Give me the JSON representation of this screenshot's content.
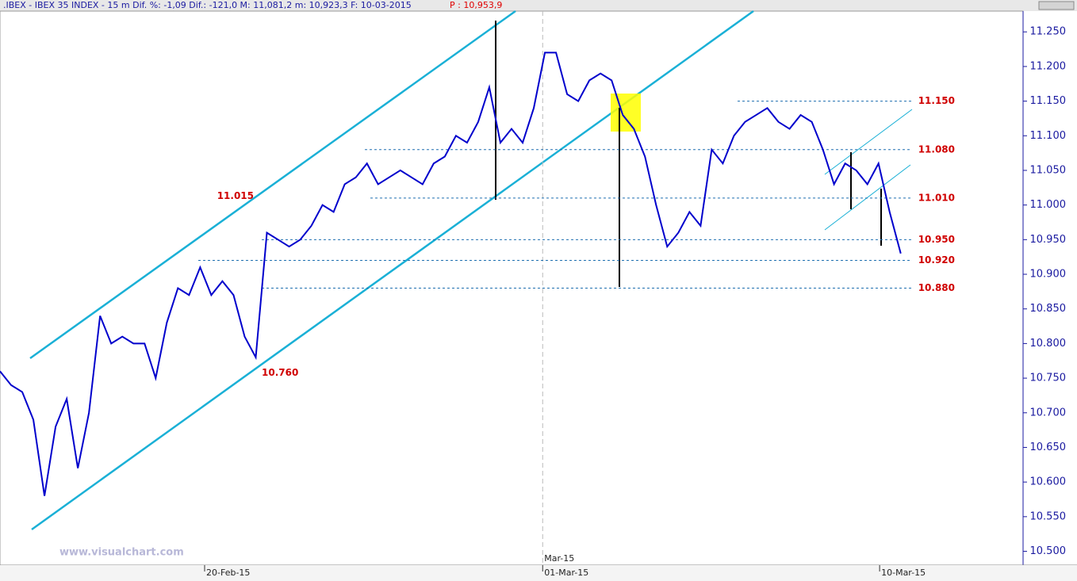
{
  "chart_data": {
    "type": "line",
    "title": ".IBEX - IBEX 35 INDEX -  15 m Dif. %: -1,09 Dif.: -121,0 M: 11,081,2 m: 10,923,3 F: 10-03-2015",
    "subtitle": "P : 10,953,9",
    "watermark": "www.visualchart.com",
    "series": [
      {
        "name": "IBEX 35",
        "color": "#0000cc",
        "values": [
          10.76,
          10.74,
          10.73,
          10.69,
          10.58,
          10.68,
          10.72,
          10.62,
          10.7,
          10.84,
          10.8,
          10.81,
          10.8,
          10.8,
          10.75,
          10.83,
          10.88,
          10.87,
          10.91,
          10.87,
          10.89,
          10.87,
          10.81,
          10.78,
          10.96,
          10.95,
          10.94,
          10.95,
          10.97,
          11.0,
          10.99,
          11.03,
          11.04,
          11.06,
          11.03,
          11.04,
          11.05,
          11.04,
          11.03,
          11.06,
          11.07,
          11.1,
          11.09,
          11.12,
          11.17,
          11.09,
          11.11,
          11.09,
          11.14,
          11.22,
          11.22,
          11.16,
          11.15,
          11.18,
          11.19,
          11.18,
          11.13,
          11.11,
          11.07,
          11.0,
          10.94,
          10.96,
          10.99,
          10.97,
          11.08,
          11.06,
          11.1,
          11.12,
          11.13,
          11.14,
          11.12,
          11.11,
          11.13,
          11.12,
          11.08,
          11.03,
          11.06,
          11.05,
          11.03,
          11.06,
          10.99,
          10.93
        ]
      }
    ],
    "xlim": [
      0,
      92
    ],
    "xticks": [
      {
        "value": 18.4,
        "label": "20-Feb-15"
      },
      {
        "value": 48.8,
        "label": "01-Mar-15"
      },
      {
        "value": 79.1,
        "label": "10-Mar-15"
      }
    ],
    "period_marker": {
      "value": 48.8,
      "label": "Mar-15"
    },
    "ylim": [
      10.48,
      11.28
    ],
    "yticks": [
      {
        "value": 10.5,
        "label": "10.500"
      },
      {
        "value": 10.55,
        "label": "10.550"
      },
      {
        "value": 10.6,
        "label": "10.600"
      },
      {
        "value": 10.65,
        "label": "10.650"
      },
      {
        "value": 10.7,
        "label": "10.700"
      },
      {
        "value": 10.75,
        "label": "10.750"
      },
      {
        "value": 10.8,
        "label": "10.800"
      },
      {
        "value": 10.85,
        "label": "10.850"
      },
      {
        "value": 10.9,
        "label": "10.900"
      },
      {
        "value": 10.95,
        "label": "10.950"
      },
      {
        "value": 11.0,
        "label": "11.000"
      },
      {
        "value": 11.05,
        "label": "11.050"
      },
      {
        "value": 11.1,
        "label": "11.100"
      },
      {
        "value": 11.15,
        "label": "11.150"
      },
      {
        "value": 11.2,
        "label": "11.200"
      },
      {
        "value": 11.25,
        "label": "11.250"
      }
    ],
    "levels": [
      {
        "value": 11.15,
        "label": "11.150"
      },
      {
        "value": 11.08,
        "label": "11.080"
      },
      {
        "value": 11.01,
        "label": "11.010"
      },
      {
        "value": 10.95,
        "label": "10.950"
      },
      {
        "value": 10.92,
        "label": "10.920"
      },
      {
        "value": 10.88,
        "label": "10.880"
      }
    ],
    "point_labels": [
      {
        "value": 11.015,
        "label": "11.015"
      },
      {
        "value": 10.76,
        "label": "10.760"
      }
    ]
  }
}
